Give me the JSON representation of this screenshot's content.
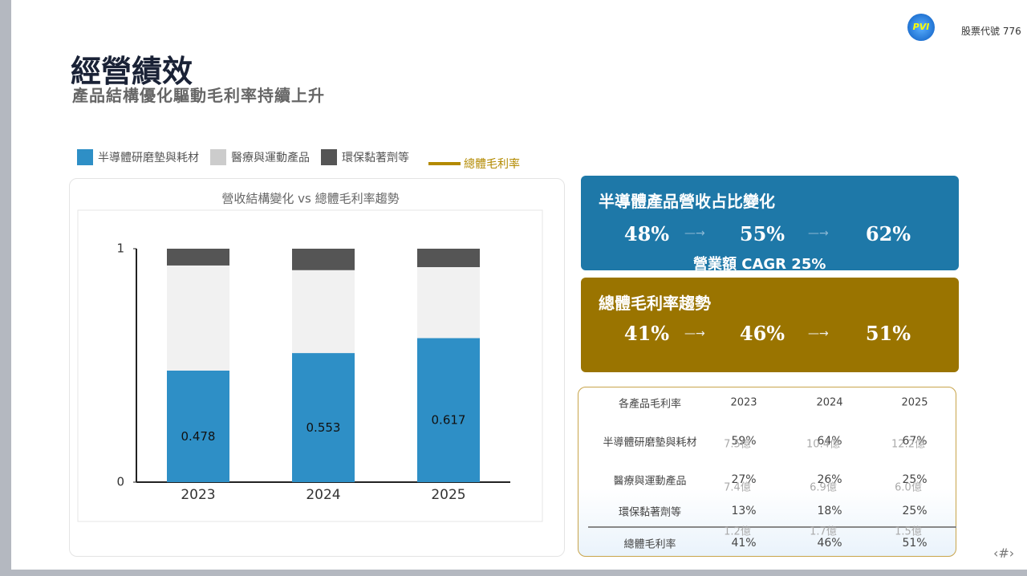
{
  "header": {
    "title": "經營績效",
    "subtitle": "產品結構優化驅動毛利率持續上升",
    "stock_code": "股票代號 776",
    "logo": "PVI",
    "page_number": "‹#›"
  },
  "chart_data": {
    "type": "stacked_bar",
    "title": "營收結構變化 vs 總體毛利率趨勢",
    "categories": [
      "2023",
      "2024",
      "2025"
    ],
    "series": [
      {
        "name": "半導體研磨墊與耗材",
        "color": "#2e8fc6",
        "values": [
          0.478,
          0.553,
          0.617
        ]
      },
      {
        "name": "醫療與運動產品",
        "color": "#f1f1f1",
        "values": [
          0.45,
          0.355,
          0.304
        ]
      },
      {
        "name": "環保黏著劑等",
        "color": "#555555",
        "values": [
          0.072,
          0.092,
          0.079
        ]
      }
    ],
    "legend_extra": {
      "name": "總體毛利率",
      "color": "#b38a00"
    },
    "ylim": [
      0,
      1
    ],
    "yticks": [
      0,
      1
    ]
  },
  "semi_box": {
    "title": "半導體產品營收占比變化",
    "values": [
      "48%",
      "55%",
      "62%"
    ],
    "note": "營業額 CAGR 25%"
  },
  "margin_box": {
    "title": "總體毛利率趨勢",
    "values": [
      "41%",
      "46%",
      "51%"
    ]
  },
  "table": {
    "header": [
      "各產品毛利率",
      "2023",
      "2024",
      "2025"
    ],
    "rows": [
      [
        "半導體研磨墊與耗材",
        "59%",
        "64%",
        "67%"
      ],
      [
        "醫療與運動產品",
        "27%",
        "26%",
        "25%"
      ],
      [
        "環保黏著劑等",
        "13%",
        "18%",
        "25%"
      ],
      [
        "總體毛利率",
        "41%",
        "46%",
        "51%"
      ]
    ],
    "sub_rows": [
      [
        "7.5億",
        "10.4億",
        "12.2億"
      ],
      [
        "7.4億",
        "6.9億",
        "6.0億"
      ],
      [
        "1.2億",
        "1.7億",
        "1.5億"
      ]
    ]
  }
}
